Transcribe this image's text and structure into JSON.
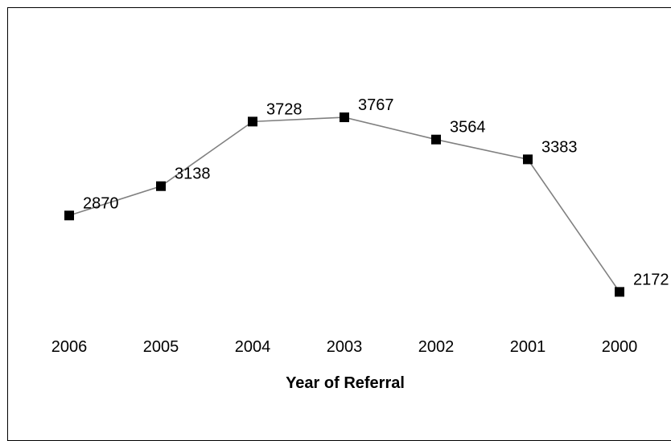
{
  "chart_data": {
    "type": "line",
    "title": "",
    "xlabel": "Year of Referral",
    "ylabel": "",
    "categories": [
      "2006",
      "2005",
      "2004",
      "2003",
      "2002",
      "2001",
      "2000"
    ],
    "series": [
      {
        "values": [
          2870,
          3138,
          3728,
          3767,
          3564,
          3383,
          2172
        ]
      }
    ],
    "ylim": [
      1500,
      4500
    ],
    "grid": false,
    "legend": "none",
    "line_color": "#808080",
    "marker_color": "#000000",
    "marker": "square"
  }
}
